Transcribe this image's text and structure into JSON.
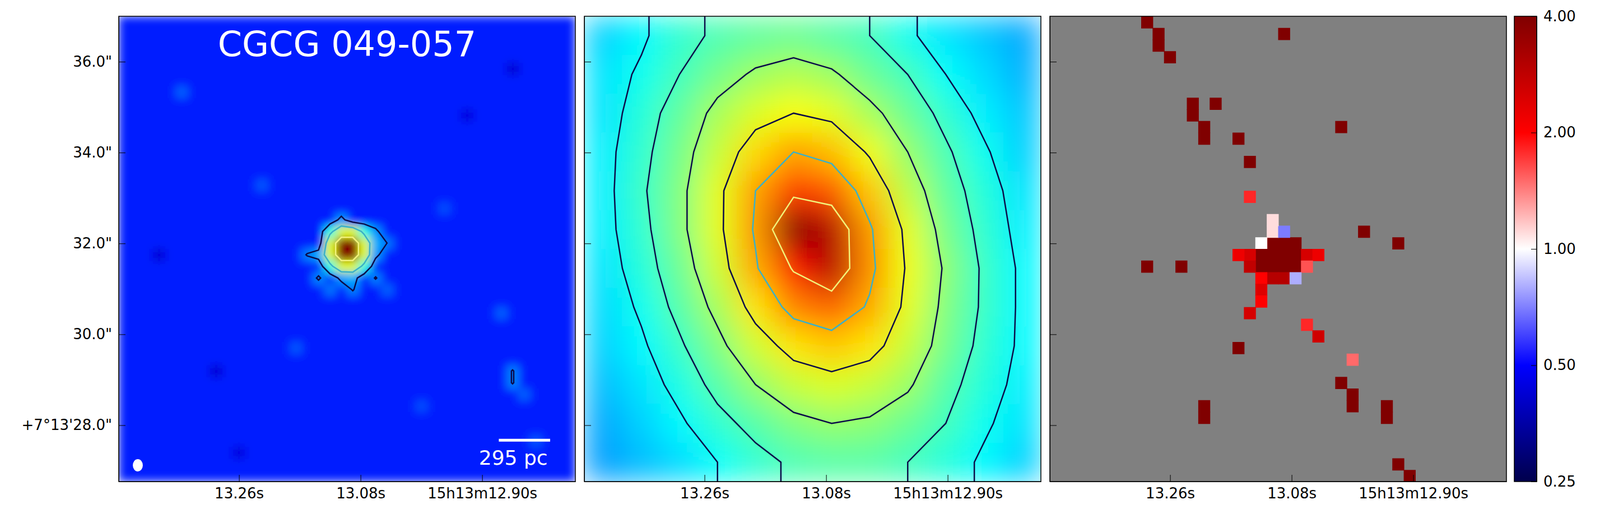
{
  "chart_data": [
    {
      "type": "heatmap",
      "title": "CGCG 049-057",
      "xlim": [
        13.438,
        12.762
      ],
      "ylim": [
        26.76,
        37.0
      ],
      "xticks": [
        {
          "value": 13.26,
          "label": "13.26s"
        },
        {
          "value": 13.08,
          "label": "13.08s"
        },
        {
          "value": 12.9,
          "label": "15h13m12.90s"
        }
      ],
      "yticks": [
        {
          "value": 28,
          "label": "+7°13'28.0\""
        },
        {
          "value": 30,
          "label": "30.0\""
        },
        {
          "value": 32,
          "label": "32.0\""
        },
        {
          "value": 34,
          "label": "34.0\""
        },
        {
          "value": 36,
          "label": "36.0\""
        }
      ],
      "shape": [
        40,
        40
      ],
      "color_range": [
        0,
        1
      ],
      "background": 0.15,
      "cells": [
        [
          19,
          19,
          1
        ],
        [
          20,
          19,
          1
        ],
        [
          19,
          20,
          1
        ],
        [
          20,
          20,
          1
        ],
        [
          18,
          19,
          0.6
        ],
        [
          18,
          20,
          0.6
        ],
        [
          21,
          19,
          0.6
        ],
        [
          21,
          20,
          0.6
        ],
        [
          19,
          18,
          0.6
        ],
        [
          20,
          18,
          0.6
        ],
        [
          19,
          21,
          0.6
        ],
        [
          20,
          21,
          0.6
        ],
        [
          18,
          18,
          0.4
        ],
        [
          21,
          18,
          0.4
        ],
        [
          18,
          21,
          0.4
        ],
        [
          21,
          21,
          0.4
        ],
        [
          17,
          20,
          0.3
        ],
        [
          22,
          19,
          0.3
        ],
        [
          22,
          20,
          0.28
        ],
        [
          16,
          20,
          0.25
        ],
        [
          19,
          22,
          0.28
        ],
        [
          20,
          22,
          0.3
        ],
        [
          20,
          23,
          0.25
        ],
        [
          19,
          17,
          0.28
        ],
        [
          22,
          18,
          0.27
        ],
        [
          23,
          19,
          0.24
        ],
        [
          17,
          22,
          0.26
        ],
        [
          18,
          23,
          0.24
        ],
        [
          22,
          22,
          0.25
        ],
        [
          23,
          23,
          0.22
        ],
        [
          5,
          6,
          0.22
        ],
        [
          8,
          30,
          0.08
        ],
        [
          12,
          14,
          0.21
        ],
        [
          30,
          8,
          0.09
        ],
        [
          33,
          25,
          0.22
        ],
        [
          26,
          33,
          0.2
        ],
        [
          10,
          37,
          0.09
        ],
        [
          36,
          36,
          0.21
        ],
        [
          3,
          20,
          0.08
        ],
        [
          28,
          16,
          0.2
        ],
        [
          15,
          28,
          0.21
        ],
        [
          34,
          4,
          0.08
        ],
        [
          34,
          30,
          0.25
        ],
        [
          34,
          31,
          0.25
        ],
        [
          35,
          32,
          0.22
        ]
      ],
      "contour_levels": [
        0.24,
        0.45,
        0.8
      ],
      "scale_bar": {
        "label": "295 pc",
        "length": 1.13
      },
      "beam": [
        0.22,
        0.27
      ]
    },
    {
      "type": "heatmap",
      "tick_labels": "x",
      "xlim": [
        13.438,
        12.762
      ],
      "ylim": [
        26.76,
        37.0
      ],
      "xticks": [
        {
          "value": 13.26,
          "label": "13.26s"
        },
        {
          "value": 13.08,
          "label": "13.08s"
        },
        {
          "value": 12.9,
          "label": "15h13m12.90s"
        }
      ],
      "yticks": [
        28,
        30,
        32,
        34,
        36
      ],
      "shape": [
        12,
        12
      ],
      "color_range": [
        0,
        1
      ],
      "values": [
        [
          0.33,
          0.37,
          0.42,
          0.45,
          0.47,
          0.48,
          0.46,
          0.44,
          0.39,
          0.35,
          0.32,
          0.29
        ],
        [
          0.35,
          0.39,
          0.44,
          0.49,
          0.53,
          0.55,
          0.53,
          0.48,
          0.44,
          0.38,
          0.34,
          0.3
        ],
        [
          0.35,
          0.41,
          0.47,
          0.54,
          0.59,
          0.62,
          0.6,
          0.54,
          0.48,
          0.42,
          0.36,
          0.32
        ],
        [
          0.36,
          0.42,
          0.49,
          0.57,
          0.66,
          0.72,
          0.69,
          0.61,
          0.52,
          0.45,
          0.39,
          0.33
        ],
        [
          0.36,
          0.43,
          0.5,
          0.6,
          0.72,
          0.82,
          0.79,
          0.68,
          0.56,
          0.47,
          0.41,
          0.35
        ],
        [
          0.36,
          0.42,
          0.5,
          0.6,
          0.73,
          1.0,
          0.95,
          0.73,
          0.6,
          0.49,
          0.42,
          0.36
        ],
        [
          0.35,
          0.41,
          0.48,
          0.58,
          0.71,
          0.86,
          0.95,
          0.74,
          0.61,
          0.51,
          0.43,
          0.37
        ],
        [
          0.34,
          0.39,
          0.46,
          0.54,
          0.65,
          0.75,
          0.78,
          0.71,
          0.6,
          0.5,
          0.43,
          0.37
        ],
        [
          0.33,
          0.37,
          0.43,
          0.5,
          0.58,
          0.65,
          0.68,
          0.65,
          0.57,
          0.49,
          0.42,
          0.37
        ],
        [
          0.31,
          0.35,
          0.4,
          0.46,
          0.52,
          0.57,
          0.59,
          0.57,
          0.53,
          0.46,
          0.41,
          0.36
        ],
        [
          0.29,
          0.33,
          0.37,
          0.42,
          0.46,
          0.5,
          0.52,
          0.51,
          0.48,
          0.44,
          0.39,
          0.35
        ],
        [
          0.28,
          0.31,
          0.34,
          0.38,
          0.42,
          0.45,
          0.46,
          0.46,
          0.44,
          0.41,
          0.37,
          0.33
        ]
      ],
      "contour_levels": [
        0.38,
        0.44,
        0.52,
        0.62,
        0.72,
        0.85
      ]
    },
    {
      "type": "heatmap",
      "tick_labels": "x",
      "xlim": [
        13.438,
        12.762
      ],
      "ylim": [
        26.76,
        37.0
      ],
      "xticks": [
        {
          "value": 13.26,
          "label": "13.26s"
        },
        {
          "value": 13.08,
          "label": "13.08s"
        },
        {
          "value": 12.9,
          "label": "15h13m12.90s"
        }
      ],
      "yticks": [
        28,
        30,
        32,
        34,
        36
      ],
      "shape": [
        40,
        40
      ],
      "cells": [
        [
          19,
          19,
          4
        ],
        [
          20,
          19,
          4
        ],
        [
          21,
          19,
          4
        ],
        [
          18,
          19,
          1.0
        ],
        [
          18,
          20,
          4
        ],
        [
          19,
          20,
          4
        ],
        [
          20,
          20,
          4
        ],
        [
          21,
          20,
          4
        ],
        [
          17,
          20,
          2.5
        ],
        [
          16,
          20,
          2.2
        ],
        [
          22,
          20,
          2.5
        ],
        [
          23,
          20,
          2.2
        ],
        [
          18,
          21,
          4
        ],
        [
          19,
          21,
          4
        ],
        [
          20,
          21,
          4
        ],
        [
          21,
          21,
          4
        ],
        [
          17,
          21,
          2.8
        ],
        [
          22,
          21,
          1.6
        ],
        [
          19,
          22,
          3
        ],
        [
          20,
          22,
          3
        ],
        [
          18,
          22,
          2
        ],
        [
          21,
          22,
          0.8
        ],
        [
          19,
          18,
          1.1
        ],
        [
          20,
          18,
          0.7
        ],
        [
          19,
          17,
          1.1
        ],
        [
          17,
          15,
          1.8
        ],
        [
          18,
          23,
          2.4
        ],
        [
          18,
          24,
          2.0
        ],
        [
          17,
          25,
          2.5
        ],
        [
          16,
          28,
          4
        ],
        [
          22,
          26,
          1.8
        ],
        [
          23,
          27,
          2.6
        ],
        [
          26,
          29,
          1.5
        ],
        [
          8,
          0,
          4
        ],
        [
          9,
          1,
          4
        ],
        [
          9,
          2,
          4
        ],
        [
          10,
          3,
          4
        ],
        [
          12,
          7,
          4
        ],
        [
          12,
          8,
          4
        ],
        [
          13,
          9,
          4
        ],
        [
          13,
          10,
          4
        ],
        [
          14,
          7,
          4
        ],
        [
          16,
          10,
          4
        ],
        [
          20,
          1,
          4
        ],
        [
          25,
          9,
          4
        ],
        [
          17,
          12,
          4
        ],
        [
          27,
          18,
          4
        ],
        [
          30,
          19,
          4
        ],
        [
          8,
          21,
          4
        ],
        [
          11,
          21,
          4
        ],
        [
          13,
          33,
          4
        ],
        [
          13,
          34,
          4
        ],
        [
          25,
          31,
          4
        ],
        [
          26,
          32,
          4
        ],
        [
          26,
          33,
          4
        ],
        [
          29,
          33,
          4
        ],
        [
          29,
          34,
          4
        ],
        [
          30,
          38,
          4
        ],
        [
          31,
          39,
          4
        ]
      ],
      "colorbar": {
        "range": [
          0.25,
          4
        ],
        "log": true,
        "ticks": [
          0.25,
          {
            "value": 0.5,
            "label": "0.50"
          },
          {
            "value": 1,
            "label": "1.00"
          },
          {
            "value": 2,
            "label": "2.00"
          },
          {
            "value": 4,
            "label": "4.00"
          }
        ]
      }
    }
  ]
}
